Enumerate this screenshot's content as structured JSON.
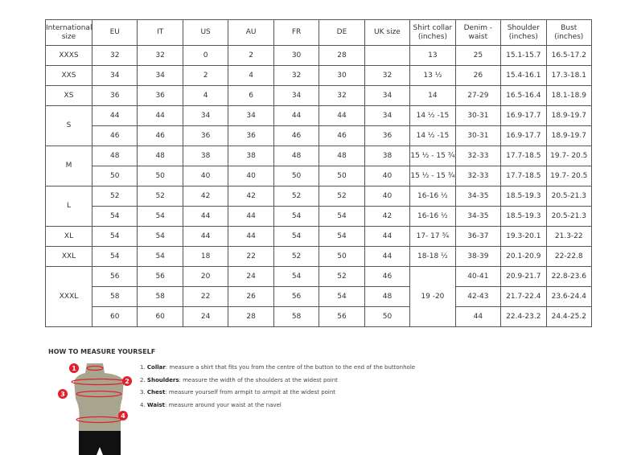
{
  "headers": [
    "International size",
    "EU",
    "IT",
    "US",
    "AU",
    "FR",
    "DE",
    "UK size",
    "Shirt collar (inches)",
    "Denim - waist",
    "Shoulder (inches)",
    "Bust (inches)"
  ],
  "groups": [
    {
      "size": "XXXS",
      "rows": [
        [
          "32",
          "32",
          "0",
          "2",
          "30",
          "28",
          "",
          "13",
          "25",
          "15.1-15.7",
          "16.5-17.2"
        ]
      ]
    },
    {
      "size": "XXS",
      "rows": [
        [
          "34",
          "34",
          "2",
          "4",
          "32",
          "30",
          "32",
          "13 ½",
          "26",
          "15.4-16.1",
          "17.3-18.1"
        ]
      ]
    },
    {
      "size": "XS",
      "rows": [
        [
          "36",
          "36",
          "4",
          "6",
          "34",
          "32",
          "34",
          "14",
          "27-29",
          "16.5-16.4",
          "18.1-18.9"
        ]
      ]
    },
    {
      "size": "S",
      "rows": [
        [
          "44",
          "44",
          "34",
          "34",
          "44",
          "44",
          "34",
          "14 ½ -15",
          "30-31",
          "16.9-17.7",
          "18.9-19.7"
        ],
        [
          "46",
          "46",
          "36",
          "36",
          "46",
          "46",
          "36",
          "14 ½ -15",
          "30-31",
          "16.9-17.7",
          "18.9-19.7"
        ]
      ]
    },
    {
      "size": "M",
      "rows": [
        [
          "48",
          "48",
          "38",
          "38",
          "48",
          "48",
          "38",
          "15 ½ - 15 ¾",
          "32-33",
          "17.7-18.5",
          "19.7- 20.5"
        ],
        [
          "50",
          "50",
          "40",
          "40",
          "50",
          "50",
          "40",
          "15 ½ - 15 ¾",
          "32-33",
          "17.7-18.5",
          "19.7- 20.5"
        ]
      ]
    },
    {
      "size": "L",
      "rows": [
        [
          "52",
          "52",
          "42",
          "42",
          "52",
          "52",
          "40",
          "16-16 ½",
          "34-35",
          "18.5-19.3",
          "20.5-21.3"
        ],
        [
          "54",
          "54",
          "44",
          "44",
          "54",
          "54",
          "42",
          "16-16 ½",
          "34-35",
          "18.5-19.3",
          "20.5-21.3"
        ]
      ]
    },
    {
      "size": "XL",
      "rows": [
        [
          "54",
          "54",
          "44",
          "44",
          "54",
          "54",
          "44",
          "17- 17 ¾",
          "36-37",
          "19.3-20.1",
          "21.3-22"
        ]
      ]
    },
    {
      "size": "XXL",
      "rows": [
        [
          "54",
          "54",
          "18",
          "22",
          "52",
          "50",
          "44",
          "18-18 ½",
          "38-39",
          "20.1-20.9",
          "22-22.8"
        ]
      ]
    },
    {
      "size": "XXXL",
      "merged_collar": "19 -20",
      "rows": [
        [
          "56",
          "56",
          "20",
          "24",
          "54",
          "52",
          "46",
          null,
          "40-41",
          "20.9-21.7",
          "22.8-23.6"
        ],
        [
          "58",
          "58",
          "22",
          "26",
          "56",
          "54",
          "48",
          null,
          "42-43",
          "21.7-22.4",
          "23.6-24.4"
        ],
        [
          "60",
          "60",
          "24",
          "28",
          "58",
          "56",
          "50",
          null,
          "44",
          "22.4-23.2",
          "24.4-25.2"
        ]
      ]
    }
  ],
  "guide": {
    "title": "HOW TO MEASURE YOURSELF",
    "steps": [
      {
        "num": "1.",
        "label": "Collar",
        "text": ": measure a shirt that fits you from the centre of the button to the end of the buttonhole"
      },
      {
        "num": "2.",
        "label": "Shoulders",
        "text": ": measure the width of the shoulders at the widest point"
      },
      {
        "num": "3.",
        "label": "Chest",
        "text": ": measure yourself from armpit to armpit at the widest point"
      },
      {
        "num": "4.",
        "label": "Waist",
        "text": ": measure around your waist at the navel"
      }
    ],
    "markers": [
      "1",
      "2",
      "3",
      "4"
    ],
    "colors": {
      "accent": "#e0202c",
      "torso": "#a8a58f",
      "shorts": "#111111"
    }
  }
}
